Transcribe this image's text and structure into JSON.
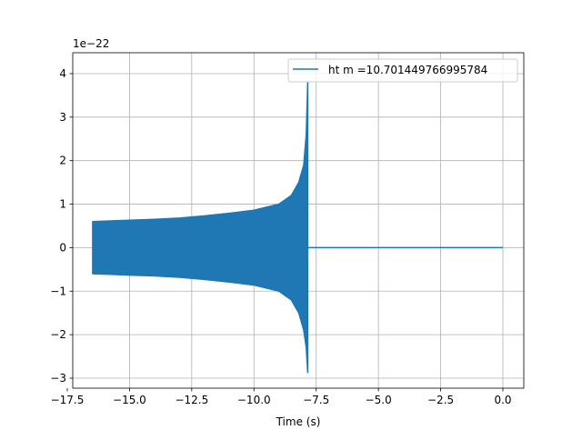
{
  "chart_data": {
    "type": "line",
    "title": "",
    "xlabel": "Time (s)",
    "ylabel": "",
    "y_offset_label": "1e−22",
    "xlim": [
      -17.28,
      0.84
    ],
    "ylim": [
      -3.23,
      4.48
    ],
    "grid": true,
    "legend_placement": "upper-right",
    "xticks": [
      -17.5,
      -15.0,
      -12.5,
      -10.0,
      -7.5,
      -5.0,
      -2.5,
      0.0
    ],
    "xtick_labels": [
      "−17.5",
      "−15.0",
      "−12.5",
      "−10.0",
      "−7.5",
      "−5.0",
      "−2.5",
      "0.0"
    ],
    "yticks": [
      -3,
      -2,
      -1,
      0,
      1,
      2,
      3,
      4
    ],
    "ytick_labels": [
      "−3",
      "−2",
      "−1",
      "0",
      "1",
      "2",
      "3",
      "4"
    ],
    "series": [
      {
        "name": "ht m =10.701449766995784",
        "color": "#1f77b4",
        "oscillation_envelope": {
          "t": [
            -16.48,
            -15.0,
            -14.0,
            -13.0,
            -12.0,
            -11.0,
            -10.0,
            -9.0,
            -8.5,
            -8.2,
            -8.0,
            -7.9,
            -7.84
          ],
          "upper": [
            0.6,
            0.63,
            0.65,
            0.68,
            0.73,
            0.79,
            0.86,
            1.0,
            1.2,
            1.5,
            1.9,
            2.6,
            3.8
          ],
          "lower": [
            -0.6,
            -0.63,
            -0.65,
            -0.68,
            -0.73,
            -0.79,
            -0.86,
            -1.0,
            -1.2,
            -1.5,
            -1.9,
            -2.3,
            -2.87
          ]
        },
        "post_merger": {
          "t": [
            -7.82,
            0.0
          ],
          "y": [
            0,
            0
          ]
        }
      }
    ]
  }
}
